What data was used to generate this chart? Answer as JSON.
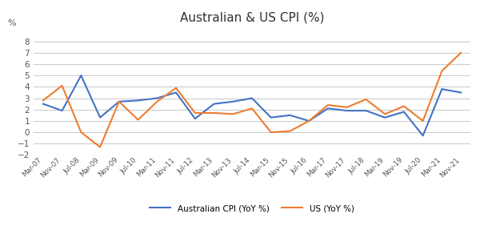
{
  "title": "Australian & US CPI (%)",
  "ylim": [
    -2,
    9
  ],
  "yticks": [
    -2,
    -1,
    0,
    1,
    2,
    3,
    4,
    5,
    6,
    7,
    8
  ],
  "labels": [
    "Mar-07",
    "Nov-07",
    "Jul-08",
    "Mar-09",
    "Nov-09",
    "Jul-10",
    "Mar-11",
    "Nov-11",
    "Jul-12",
    "Mar-13",
    "Nov-13",
    "Jul-14",
    "Mar-15",
    "Nov-15",
    "Jul-16",
    "Mar-17",
    "Nov-17",
    "Jul-18",
    "Mar-19",
    "Nov-19",
    "Jul-20",
    "Mar-21",
    "Nov-21"
  ],
  "au_cpi": [
    2.5,
    1.9,
    5.0,
    1.3,
    2.7,
    2.8,
    3.0,
    3.5,
    1.2,
    2.5,
    2.7,
    3.0,
    1.3,
    1.5,
    1.0,
    2.1,
    1.9,
    1.9,
    1.3,
    1.8,
    -0.3,
    3.8,
    3.5
  ],
  "us_cpi": [
    2.8,
    4.1,
    0.0,
    -1.3,
    2.7,
    1.1,
    2.7,
    3.9,
    1.7,
    1.7,
    1.6,
    2.1,
    0.0,
    0.1,
    1.0,
    2.4,
    2.2,
    2.9,
    1.6,
    2.3,
    1.0,
    5.4,
    7.0
  ],
  "au_color": "#4472C4",
  "us_color": "#ED7D31",
  "legend_au": "Australian CPI (YoY %)",
  "legend_us": "US (YoY %)",
  "bg_color": "#FFFFFF",
  "grid_color": "#C8C8C8",
  "line_width": 1.5,
  "percent_label": "%"
}
